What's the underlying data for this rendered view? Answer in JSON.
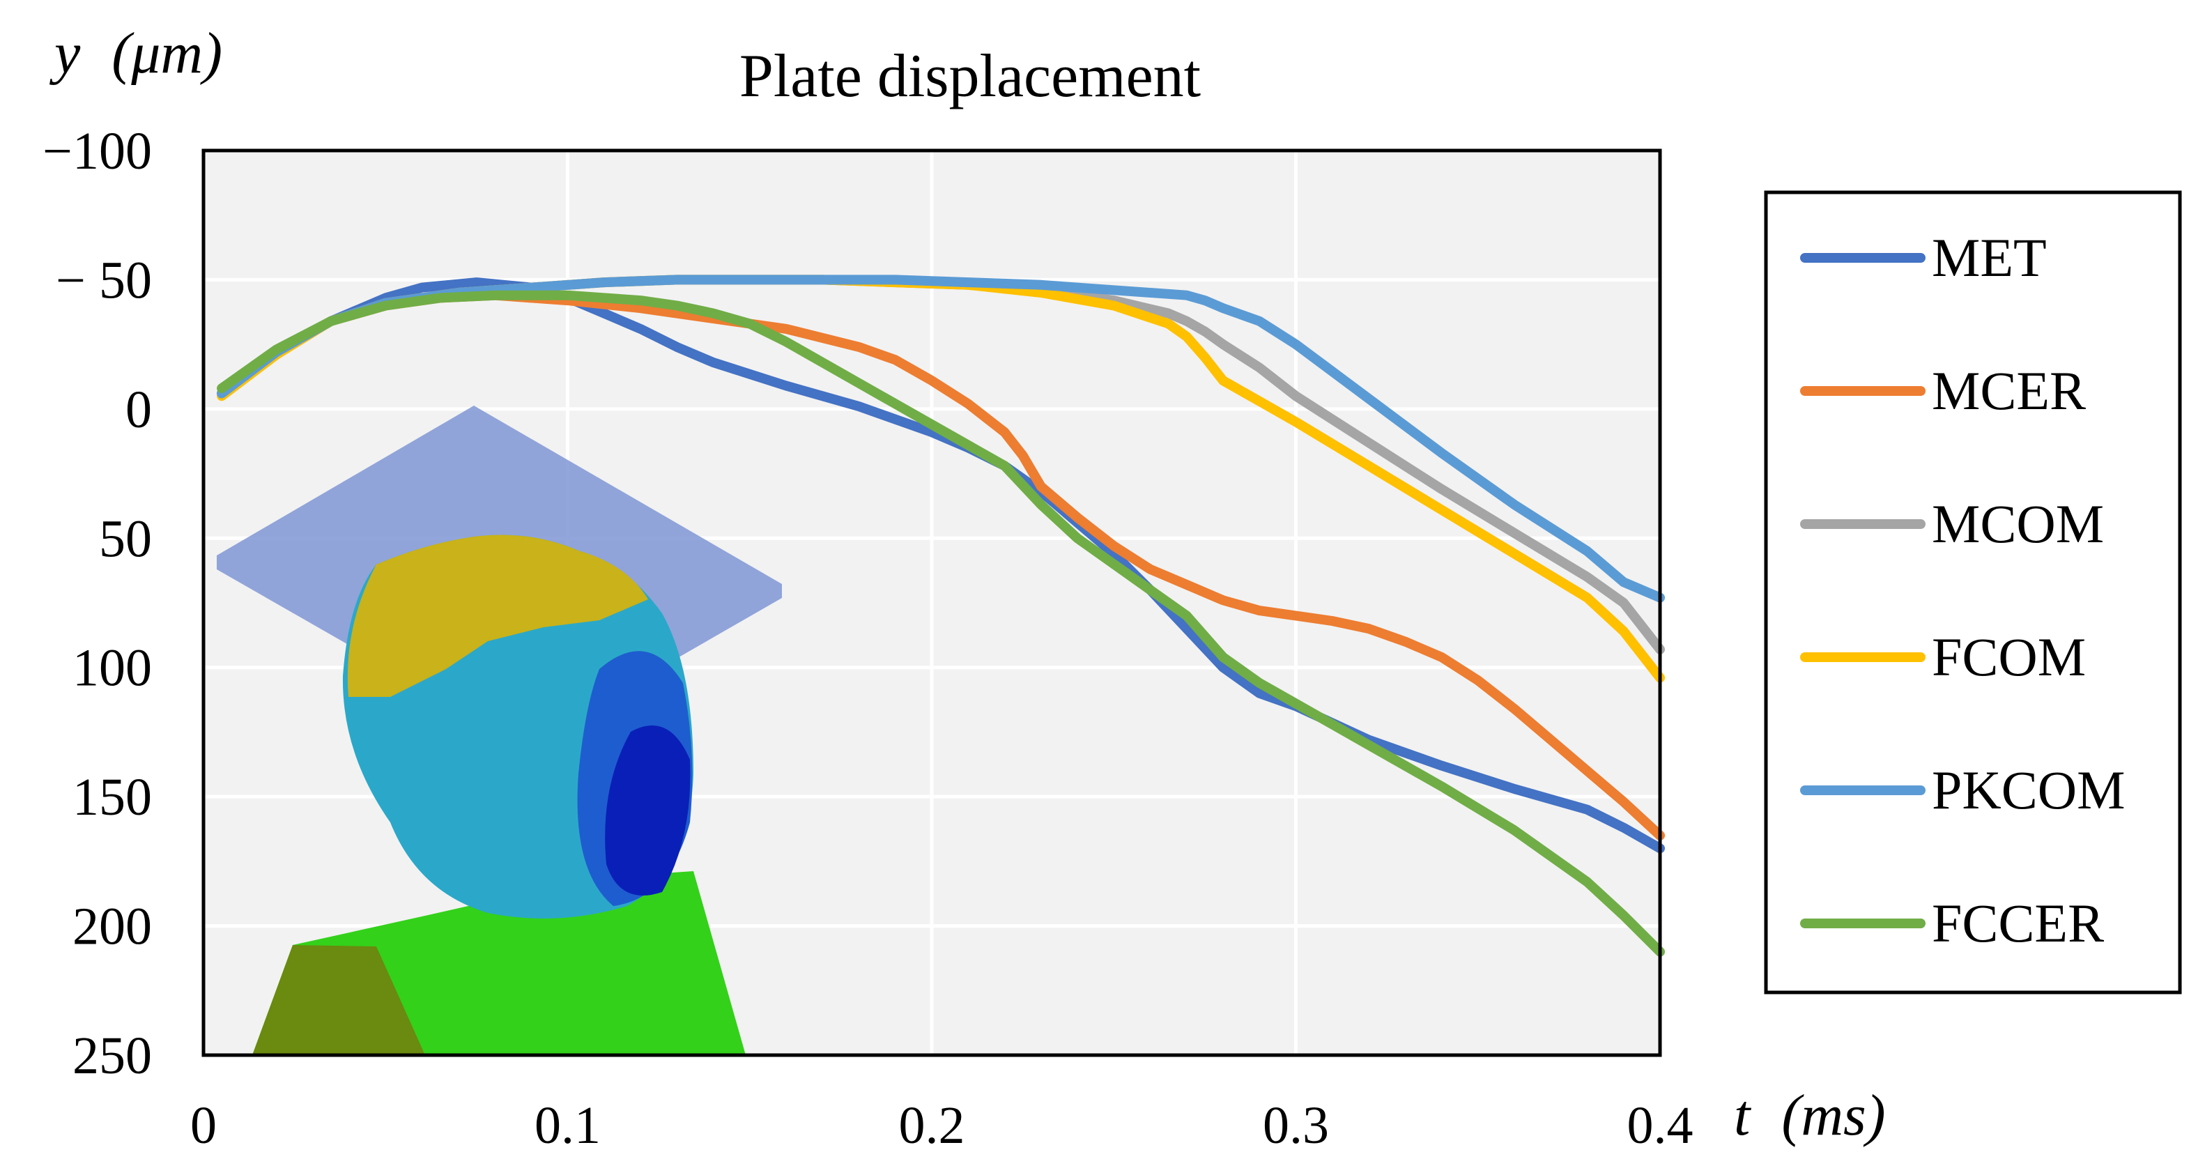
{
  "chart_data": {
    "type": "line",
    "title": "Plate displacement",
    "ylabel": "y (μm)",
    "ylabel_var": "y",
    "ylabel_unit": "(μm)",
    "xlabel": "t (ms)",
    "xlabel_var": "t",
    "xlabel_unit": "(ms)",
    "xlim": [
      0,
      0.4
    ],
    "ylim": [
      250,
      -100
    ],
    "y_inverted": true,
    "xticks": [
      0,
      0.1,
      0.2,
      0.3,
      0.4
    ],
    "xtick_labels": [
      "0",
      "0.1",
      "0.2",
      "0.3",
      "0.4"
    ],
    "yticks": [
      -100,
      -50,
      0,
      50,
      100,
      150,
      200,
      250
    ],
    "ytick_labels": [
      "−100",
      "− 50",
      "0",
      "50",
      "100",
      "150",
      "200",
      "250"
    ],
    "grid": true,
    "legend_position": "right",
    "inset_image": "tooth-and-plate-fem-model",
    "series": [
      {
        "name": "MET",
        "color": "#4472C4",
        "x": [
          0.005,
          0.02,
          0.035,
          0.05,
          0.06,
          0.075,
          0.09,
          0.1,
          0.11,
          0.12,
          0.13,
          0.14,
          0.16,
          0.18,
          0.2,
          0.21,
          0.22,
          0.23,
          0.24,
          0.25,
          0.26,
          0.27,
          0.28,
          0.29,
          0.3,
          0.32,
          0.34,
          0.36,
          0.38,
          0.39,
          0.4
        ],
        "y": [
          -6,
          -22,
          -34,
          -43,
          -47,
          -49,
          -47,
          -43,
          -37,
          -31,
          -24,
          -18,
          -9,
          -1,
          9,
          15,
          22,
          32,
          44,
          56,
          70,
          85,
          100,
          110,
          115,
          128,
          138,
          147,
          155,
          162,
          170
        ]
      },
      {
        "name": "MCER",
        "color": "#ED7D31",
        "x": [
          0.005,
          0.02,
          0.035,
          0.05,
          0.065,
          0.08,
          0.1,
          0.12,
          0.14,
          0.16,
          0.18,
          0.19,
          0.2,
          0.21,
          0.22,
          0.225,
          0.23,
          0.24,
          0.25,
          0.26,
          0.27,
          0.28,
          0.29,
          0.3,
          0.31,
          0.32,
          0.33,
          0.34,
          0.35,
          0.36,
          0.37,
          0.38,
          0.39,
          0.4
        ],
        "y": [
          -6,
          -22,
          -34,
          -40,
          -43,
          -44,
          -42,
          -39,
          -35,
          -31,
          -24,
          -19,
          -11,
          -2,
          9,
          18,
          30,
          42,
          53,
          62,
          68,
          74,
          78,
          80,
          82,
          85,
          90,
          96,
          105,
          116,
          128,
          140,
          152,
          165
        ]
      },
      {
        "name": "MCOM",
        "color": "#A5A5A5",
        "x": [
          0.005,
          0.02,
          0.035,
          0.05,
          0.07,
          0.09,
          0.11,
          0.13,
          0.15,
          0.17,
          0.19,
          0.21,
          0.23,
          0.25,
          0.265,
          0.27,
          0.275,
          0.28,
          0.29,
          0.3,
          0.32,
          0.34,
          0.36,
          0.38,
          0.39,
          0.4
        ],
        "y": [
          -6,
          -22,
          -34,
          -41,
          -45,
          -47,
          -49,
          -50,
          -50,
          -50,
          -49,
          -48,
          -46,
          -42,
          -37,
          -34,
          -30,
          -25,
          -16,
          -5,
          13,
          31,
          48,
          65,
          75,
          93
        ]
      },
      {
        "name": "FCOM",
        "color": "#FFC000",
        "x": [
          0.005,
          0.02,
          0.035,
          0.05,
          0.07,
          0.09,
          0.11,
          0.13,
          0.15,
          0.17,
          0.19,
          0.21,
          0.23,
          0.25,
          0.265,
          0.27,
          0.275,
          0.28,
          0.29,
          0.3,
          0.32,
          0.34,
          0.36,
          0.38,
          0.39,
          0.4
        ],
        "y": [
          -5,
          -21,
          -34,
          -41,
          -45,
          -47,
          -49,
          -50,
          -50,
          -50,
          -49,
          -48,
          -45,
          -40,
          -33,
          -28,
          -20,
          -11,
          -3,
          5,
          22,
          39,
          56,
          73,
          86,
          104
        ]
      },
      {
        "name": "PKCOM",
        "color": "#5B9BD5",
        "x": [
          0.005,
          0.02,
          0.035,
          0.05,
          0.07,
          0.09,
          0.11,
          0.13,
          0.15,
          0.17,
          0.19,
          0.21,
          0.23,
          0.25,
          0.27,
          0.275,
          0.28,
          0.29,
          0.3,
          0.32,
          0.34,
          0.36,
          0.38,
          0.39,
          0.4
        ],
        "y": [
          -6,
          -22,
          -34,
          -41,
          -45,
          -47,
          -49,
          -50,
          -50,
          -50,
          -50,
          -49,
          -48,
          -46,
          -44,
          -42,
          -39,
          -34,
          -25,
          -4,
          17,
          37,
          55,
          67,
          73
        ]
      },
      {
        "name": "FCCER",
        "color": "#70AD47",
        "x": [
          0.005,
          0.02,
          0.035,
          0.05,
          0.065,
          0.08,
          0.1,
          0.12,
          0.13,
          0.14,
          0.15,
          0.16,
          0.18,
          0.2,
          0.22,
          0.23,
          0.24,
          0.25,
          0.26,
          0.27,
          0.28,
          0.29,
          0.3,
          0.32,
          0.34,
          0.36,
          0.38,
          0.39,
          0.4
        ],
        "y": [
          -8,
          -23,
          -34,
          -40,
          -43,
          -44,
          -44,
          -42,
          -40,
          -37,
          -33,
          -26,
          -10,
          6,
          22,
          37,
          50,
          60,
          70,
          80,
          96,
          106,
          114,
          130,
          146,
          163,
          183,
          196,
          210
        ]
      }
    ]
  }
}
